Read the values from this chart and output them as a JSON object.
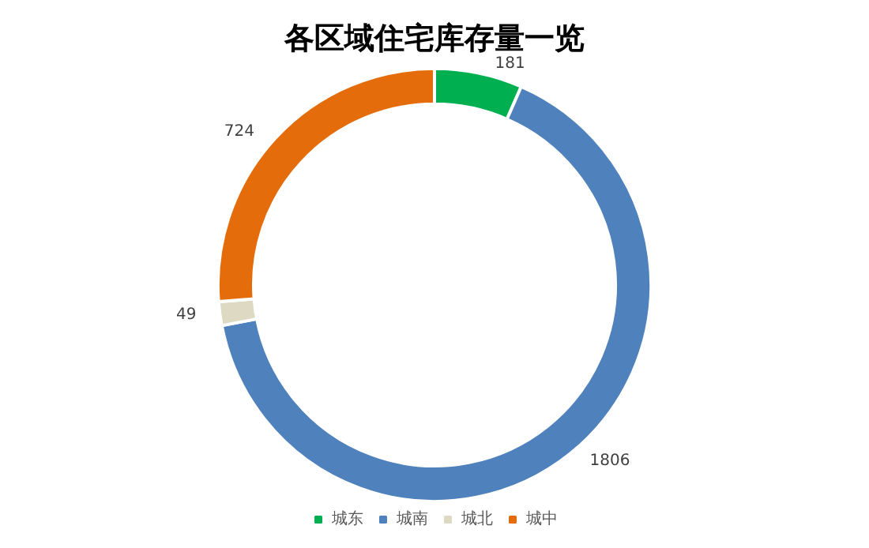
{
  "chart_data": {
    "type": "donut",
    "title": "各区域住宅库存量一览",
    "categories": [
      "城东",
      "城南",
      "城北",
      "城中"
    ],
    "values": [
      181,
      1806,
      49,
      724
    ],
    "colors": [
      "#00b050",
      "#4f81bd",
      "#ddd9c3",
      "#e46c0a"
    ],
    "data_labels": true,
    "legend": "bottom"
  }
}
